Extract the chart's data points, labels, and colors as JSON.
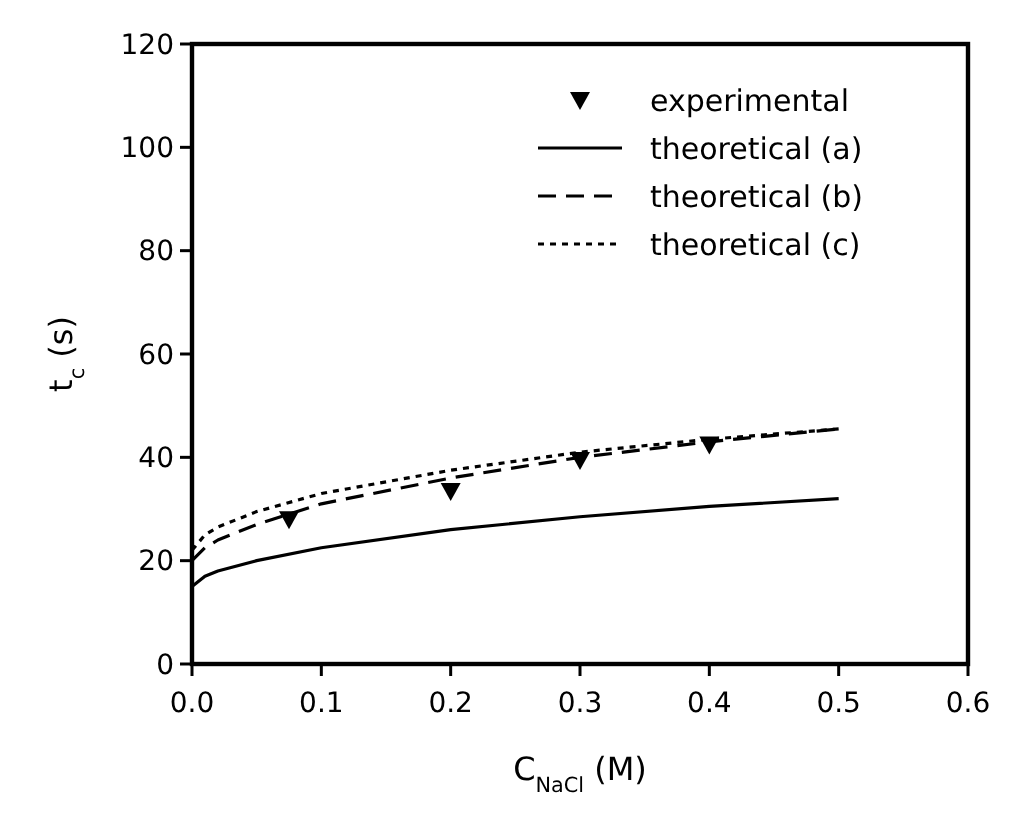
{
  "chart_data": {
    "type": "line",
    "xlabel": "C$_{NaCl}$  (M)",
    "ylabel": "t$_{c}$  (s)",
    "xlim": [
      0,
      0.6
    ],
    "ylim": [
      0,
      120
    ],
    "xticks": [
      {
        "value": 0,
        "label": "0.0"
      },
      0.1,
      0.2,
      0.3,
      0.4,
      0.5,
      0.6
    ],
    "yticks": [
      0,
      20,
      40,
      60,
      80,
      100,
      120
    ],
    "grid": false,
    "legend": "top right",
    "series": [
      {
        "name": "experimental",
        "type": "scatter",
        "marker": "triangle",
        "color": "#000000",
        "x": [
          0.075,
          0.2,
          0.3,
          0.4
        ],
        "values": [
          28,
          33.5,
          39.5,
          42.5
        ]
      },
      {
        "name": "theoretical  (a)",
        "line_style": "solid",
        "marker": "none",
        "color": "#000000",
        "x": [
          0,
          0.01,
          0.02,
          0.05,
          0.1,
          0.2,
          0.3,
          0.4,
          0.5
        ],
        "values": [
          15,
          17,
          18,
          20,
          22.5,
          26,
          28.5,
          30.5,
          32
        ]
      },
      {
        "name": "theoretical  (b)",
        "line_style": "dashed",
        "marker": "none",
        "color": "#000000",
        "x": [
          0,
          0.01,
          0.02,
          0.05,
          0.1,
          0.2,
          0.3,
          0.4,
          0.5
        ],
        "values": [
          20,
          22.5,
          24,
          27,
          31,
          36,
          40,
          43,
          45.5
        ]
      },
      {
        "name": "theoretical  (c)",
        "line_style": "dotted",
        "marker": "none",
        "color": "#000000",
        "x": [
          0,
          0.01,
          0.02,
          0.05,
          0.1,
          0.2,
          0.3,
          0.4,
          0.5
        ],
        "values": [
          22,
          25,
          26.5,
          29.5,
          33,
          37.5,
          41,
          43.5,
          45.5
        ]
      }
    ]
  }
}
